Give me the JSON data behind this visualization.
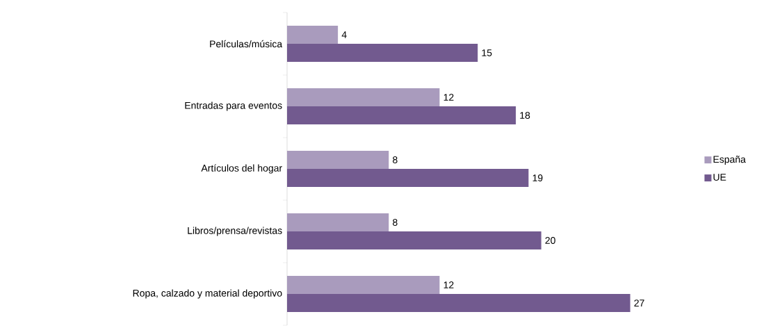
{
  "chart_data": {
    "type": "bar",
    "orientation": "horizontal",
    "categories": [
      "Películas/música",
      "Entradas para eventos",
      "Artículos del hogar",
      "Libros/prensa/revistas",
      "Ropa, calzado y material deportivo"
    ],
    "series": [
      {
        "name": "España",
        "color": "#a99bbd",
        "values": [
          4,
          12,
          8,
          8,
          12
        ]
      },
      {
        "name": "UE",
        "color": "#725a8f",
        "values": [
          15,
          18,
          19,
          20,
          27
        ]
      }
    ],
    "data_labels": true,
    "legend": "right"
  }
}
